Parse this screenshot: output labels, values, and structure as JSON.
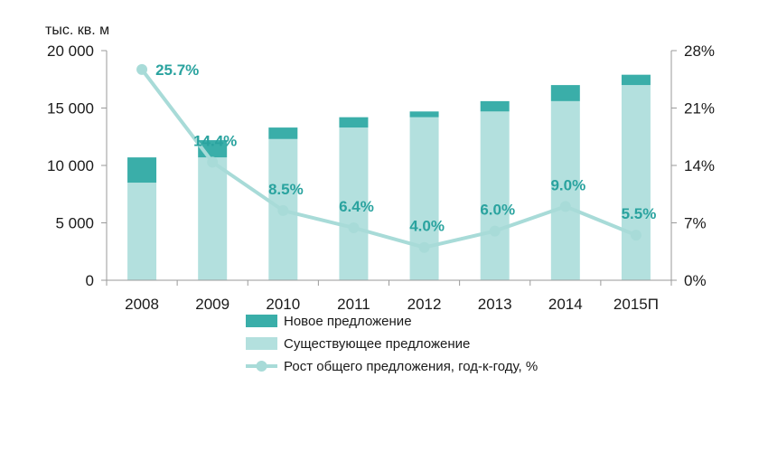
{
  "chart_data": {
    "type": "bar",
    "unit_label": "тыс. кв. м",
    "categories": [
      "2008",
      "2009",
      "2010",
      "2011",
      "2012",
      "2013",
      "2014",
      "2015П"
    ],
    "stacked": true,
    "series": [
      {
        "name": "Существующее предложение",
        "kind": "bar",
        "color": "#b3e0de",
        "values": [
          8500,
          10700,
          12300,
          13300,
          14200,
          14700,
          15600,
          17000
        ]
      },
      {
        "name": "Новое предложение",
        "kind": "bar",
        "color": "#3aaea9",
        "values": [
          2200,
          1500,
          1000,
          900,
          500,
          900,
          1400,
          900
        ]
      },
      {
        "name": "Рост общего предложения, год-к-году,  %",
        "kind": "line",
        "axis": "right",
        "color": "#a8dbd8",
        "values": [
          25.7,
          14.4,
          8.5,
          6.4,
          4.0,
          6.0,
          9.0,
          5.5
        ],
        "labels": [
          "25.7%",
          "14.4%",
          "8.5%",
          "6.4%",
          "4.0%",
          "6.0%",
          "9.0%",
          "5.5%"
        ]
      }
    ],
    "y_left": {
      "range": [
        0,
        20000
      ],
      "ticks": [
        0,
        5000,
        10000,
        15000,
        20000
      ],
      "tick_labels": [
        "0",
        "5 000",
        "10 000",
        "15 000",
        "20 000"
      ]
    },
    "y_right": {
      "range": [
        0,
        28
      ],
      "ticks": [
        0,
        7,
        14,
        21,
        28
      ],
      "tick_labels": [
        "0%",
        "7%",
        "14%",
        "21%",
        "28%"
      ]
    },
    "grid": false,
    "legend_position": "bottom",
    "legend": [
      {
        "label": "Новое предложение",
        "symbol": "bar",
        "color": "#3aaea9"
      },
      {
        "label": "Существующее предложение",
        "symbol": "bar",
        "color": "#b3e0de"
      },
      {
        "label": "Рост общего предложения, год-к-году,  %",
        "symbol": "line-marker",
        "color": "#a8dbd8"
      }
    ]
  }
}
